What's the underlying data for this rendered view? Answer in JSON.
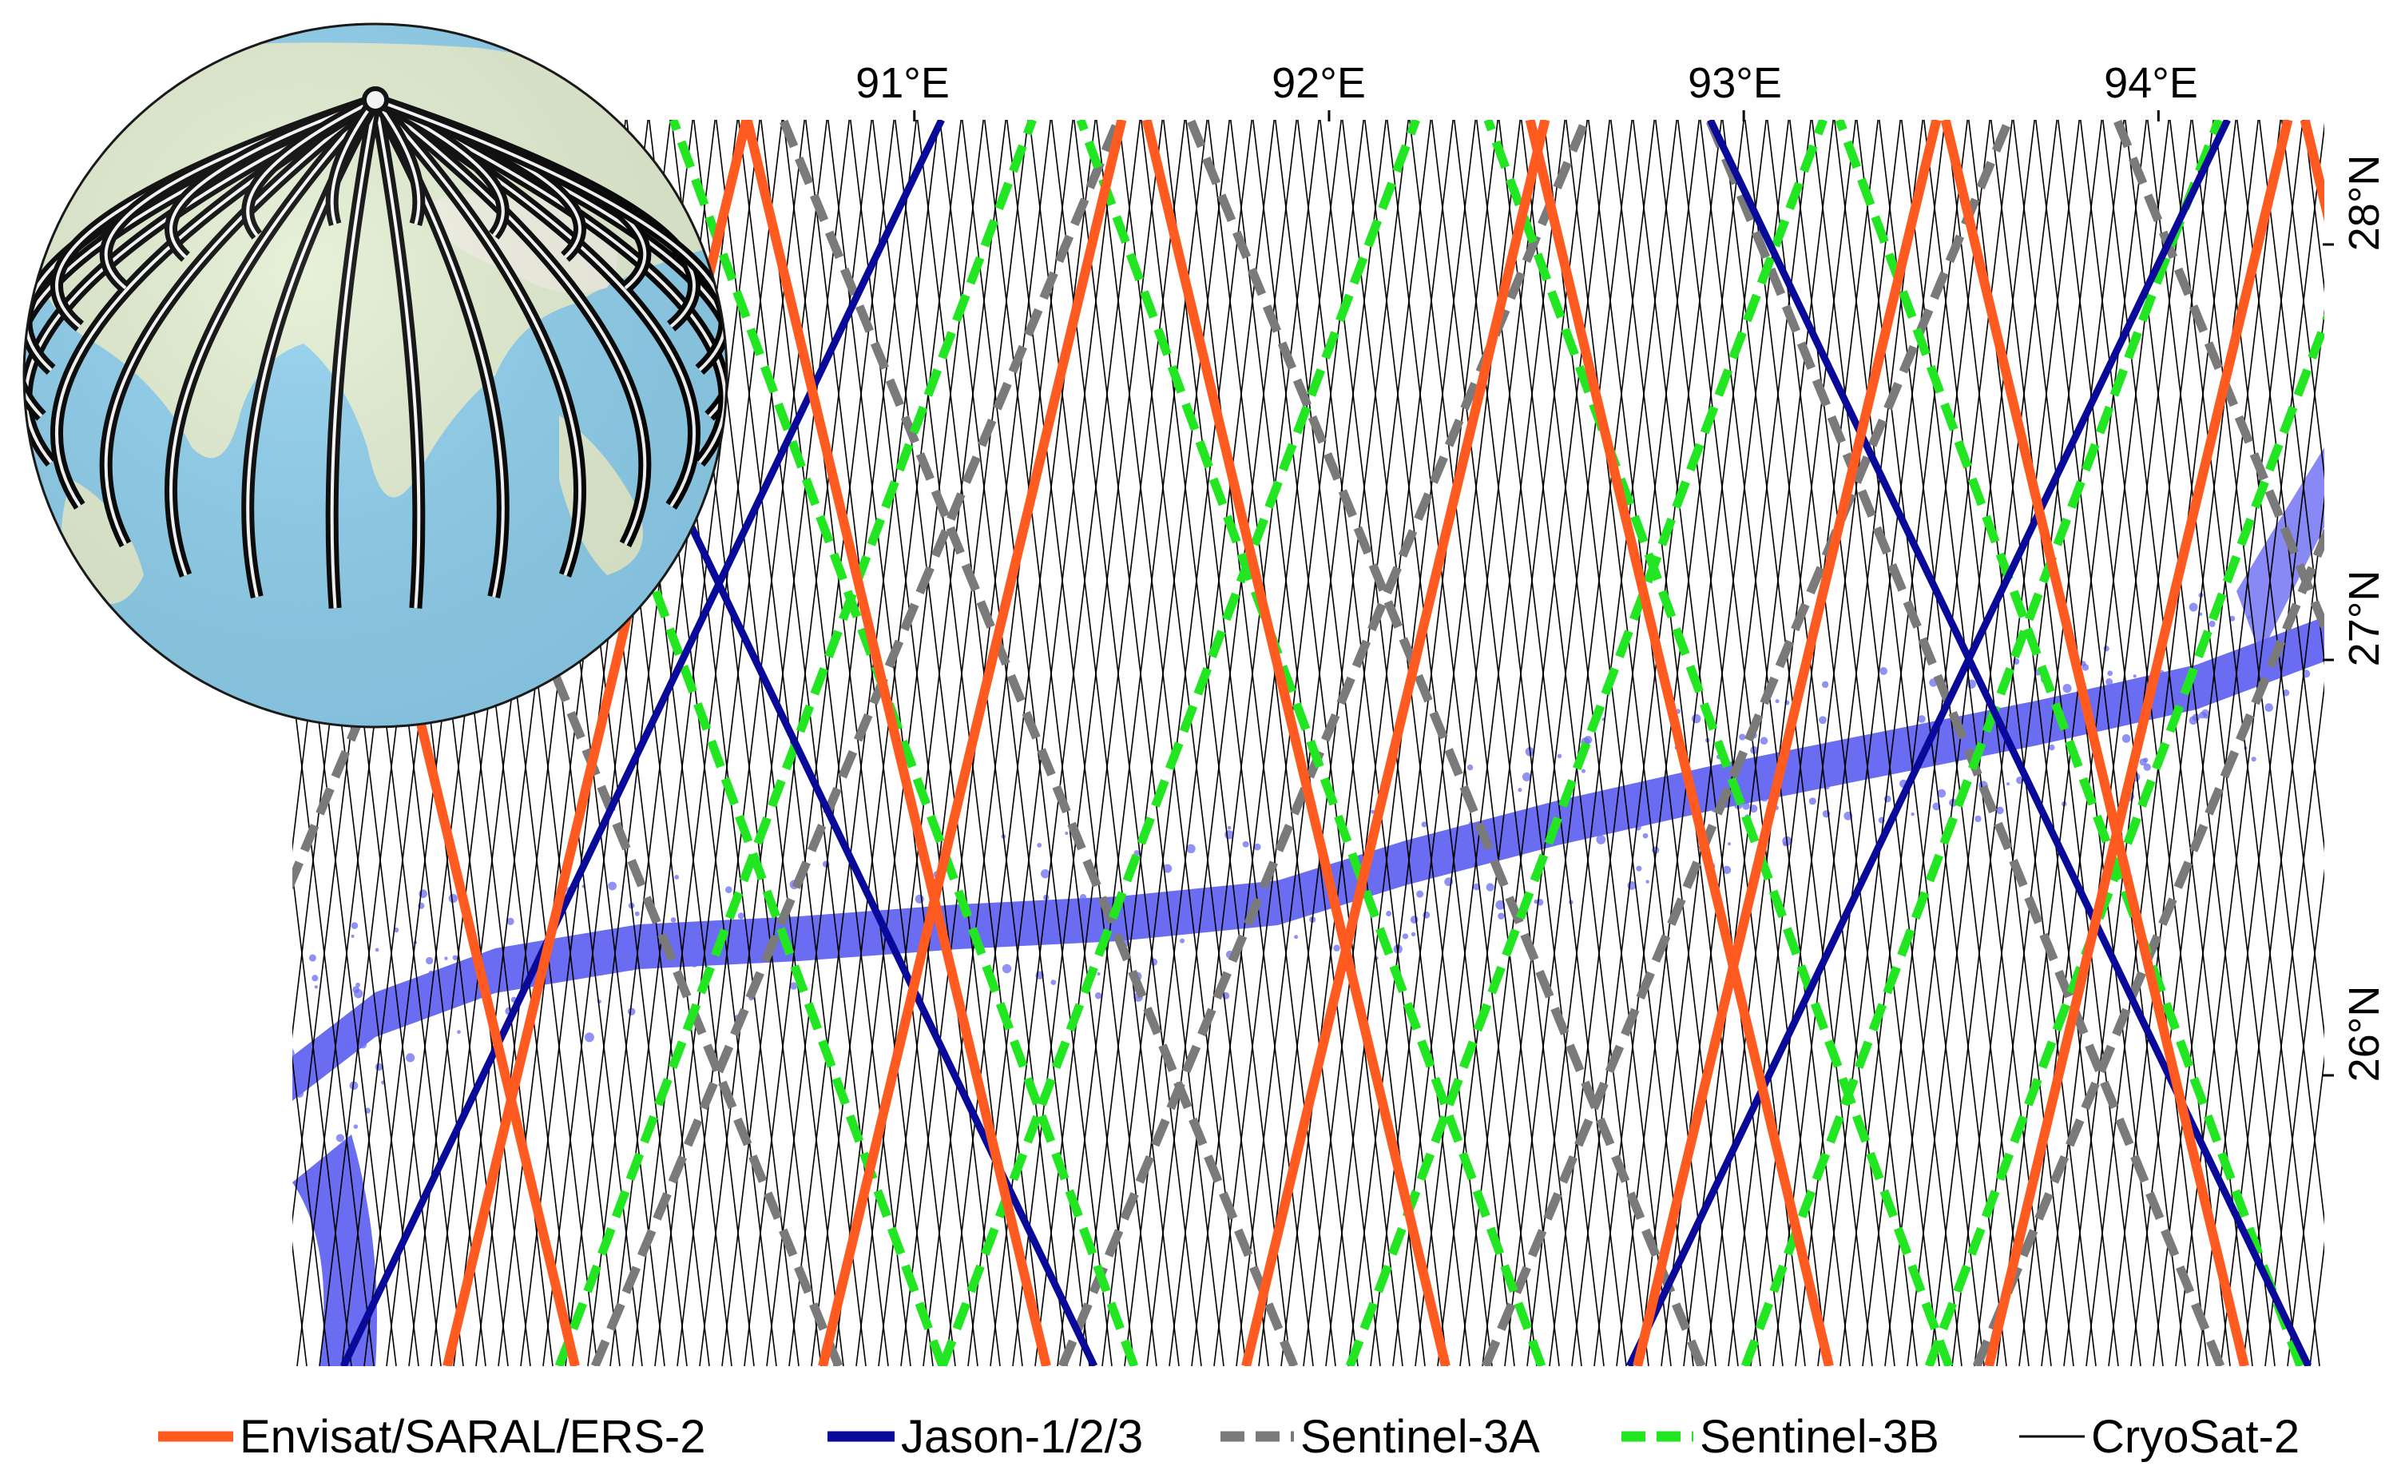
{
  "map": {
    "x_ticks": [
      {
        "label": "91°E",
        "lon": 91
      },
      {
        "label": "92°E",
        "lon": 92
      },
      {
        "label": "93°E",
        "lon": 93
      },
      {
        "label": "94°E",
        "lon": 94
      }
    ],
    "y_ticks": [
      {
        "label": "28°N",
        "lat": 28
      },
      {
        "label": "27°N",
        "lat": 27
      },
      {
        "label": "26°N",
        "lat": 26
      }
    ],
    "extent": {
      "lon": [
        89.5,
        94.4
      ],
      "lat": [
        25.3,
        28.3
      ]
    }
  },
  "legend": [
    {
      "key": "envisat",
      "label": "Envisat/SARAL/ERS-2",
      "color": "#ff5a1f",
      "style": "solid-thick"
    },
    {
      "key": "jason",
      "label": "Jason-1/2/3",
      "color": "#0a0a9a",
      "style": "solid-thick"
    },
    {
      "key": "s3a",
      "label": "Sentinel-3A",
      "color": "#7a7a7a",
      "style": "dashed-thick"
    },
    {
      "key": "s3b",
      "label": "Sentinel-3B",
      "color": "#22e622",
      "style": "dashed-thick"
    },
    {
      "key": "cryosat",
      "label": "CryoSat-2",
      "color": "#000000",
      "style": "solid-thin"
    }
  ],
  "colors": {
    "water": "#6a6cf2",
    "ocean_globe": "#8fd0ee",
    "land_globe": "#dfeed0"
  },
  "inset": {
    "subject": "globe-with-polar-orbit-tracks"
  }
}
